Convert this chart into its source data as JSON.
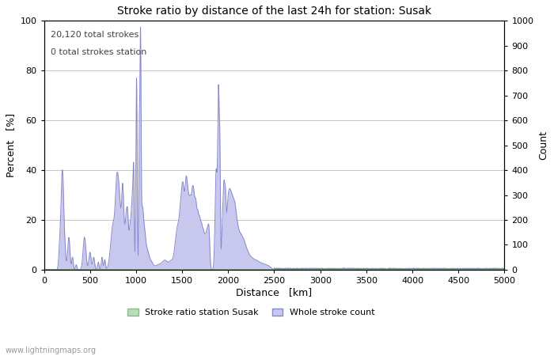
{
  "title": "Stroke ratio by distance of the last 24h for station: Susak",
  "xlabel": "Distance   [km]",
  "ylabel_left": "Percent   [%]",
  "ylabel_right": "Count",
  "annotation_line1": "20,120 total strokes",
  "annotation_line2": "0 total strokes station",
  "x_min": 0,
  "x_max": 5000,
  "y_left_min": 0,
  "y_left_max": 100,
  "y_right_min": 0,
  "y_right_max": 1000,
  "x_ticks": [
    0,
    500,
    1000,
    1500,
    2000,
    2500,
    3000,
    3500,
    4000,
    4500,
    5000
  ],
  "y_left_ticks": [
    0,
    20,
    40,
    60,
    80,
    100
  ],
  "y_right_ticks": [
    0,
    100,
    200,
    300,
    400,
    500,
    600,
    700,
    800,
    900,
    1000
  ],
  "legend_label_green": "Stroke ratio station Susak",
  "legend_label_blue": "Whole stroke count",
  "fill_green_color": "#b8ddb8",
  "fill_blue_color": "#c8c8ef",
  "line_color": "#8888cc",
  "grid_color": "#bbbbbb",
  "watermark": "www.lightningmaps.org",
  "bg_color": "#ffffff"
}
